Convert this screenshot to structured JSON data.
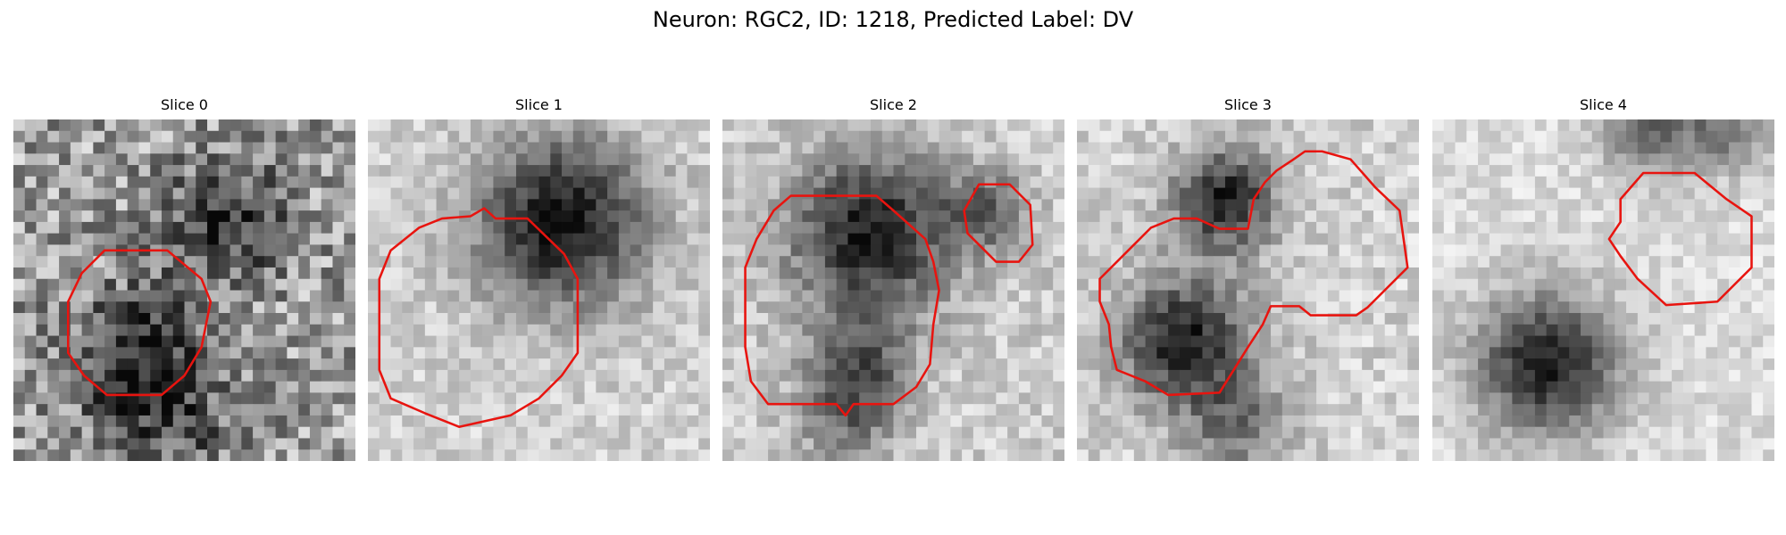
{
  "title": "Neuron: RGC2, ID: 1218, Predicted Label: DV",
  "panels": [
    {
      "title": "Slice 0"
    },
    {
      "title": "Slice 1"
    },
    {
      "title": "Slice 2"
    },
    {
      "title": "Slice 3"
    },
    {
      "title": "Slice 4"
    }
  ]
}
